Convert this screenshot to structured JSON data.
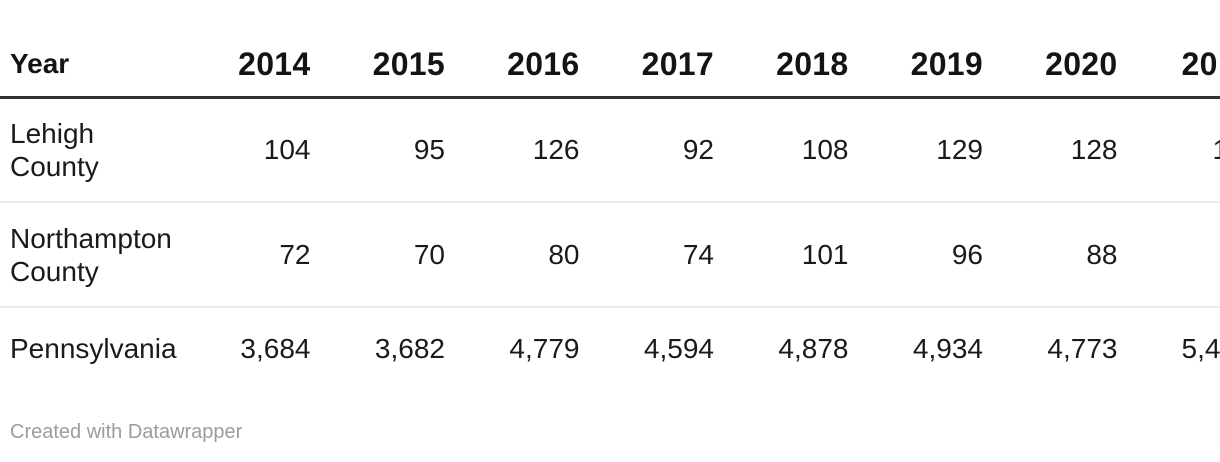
{
  "table": {
    "header": {
      "label": "Year",
      "years": [
        "2014",
        "2015",
        "2016",
        "2017",
        "2018",
        "2019",
        "2020",
        "20"
      ]
    },
    "rows": [
      {
        "label": "Lehigh County",
        "values": [
          "104",
          "95",
          "126",
          "92",
          "108",
          "129",
          "128",
          "1"
        ]
      },
      {
        "label": "Northampton County",
        "values": [
          "72",
          "70",
          "80",
          "74",
          "101",
          "96",
          "88",
          ""
        ]
      },
      {
        "label": "Pennsylvania",
        "values": [
          "3,684",
          "3,682",
          "4,779",
          "4,594",
          "4,878",
          "4,934",
          "4,773",
          "5,4"
        ]
      }
    ]
  },
  "footer": {
    "credit": "Created with Datawrapper"
  },
  "colors": {
    "text": "#1a1a1a",
    "header_rule": "#333333",
    "row_separator": "#ececec",
    "credit_text": "#9c9c9c"
  },
  "chart_data": {
    "type": "table",
    "title": "",
    "categories": [
      "2014",
      "2015",
      "2016",
      "2017",
      "2018",
      "2019",
      "2020"
    ],
    "row_header_label": "Year",
    "series": [
      {
        "name": "Lehigh County",
        "values": [
          104,
          95,
          126,
          92,
          108,
          129,
          128
        ]
      },
      {
        "name": "Northampton County",
        "values": [
          72,
          70,
          80,
          74,
          101,
          96,
          88
        ]
      },
      {
        "name": "Pennsylvania",
        "values": [
          3684,
          3682,
          4779,
          4594,
          4878,
          4934,
          4773
        ]
      }
    ],
    "notes": "Table is clipped at right edge; a partial 2021 column is cut off (header shows '20', Pennsylvania shows '5,4').",
    "credit": "Created with Datawrapper"
  }
}
